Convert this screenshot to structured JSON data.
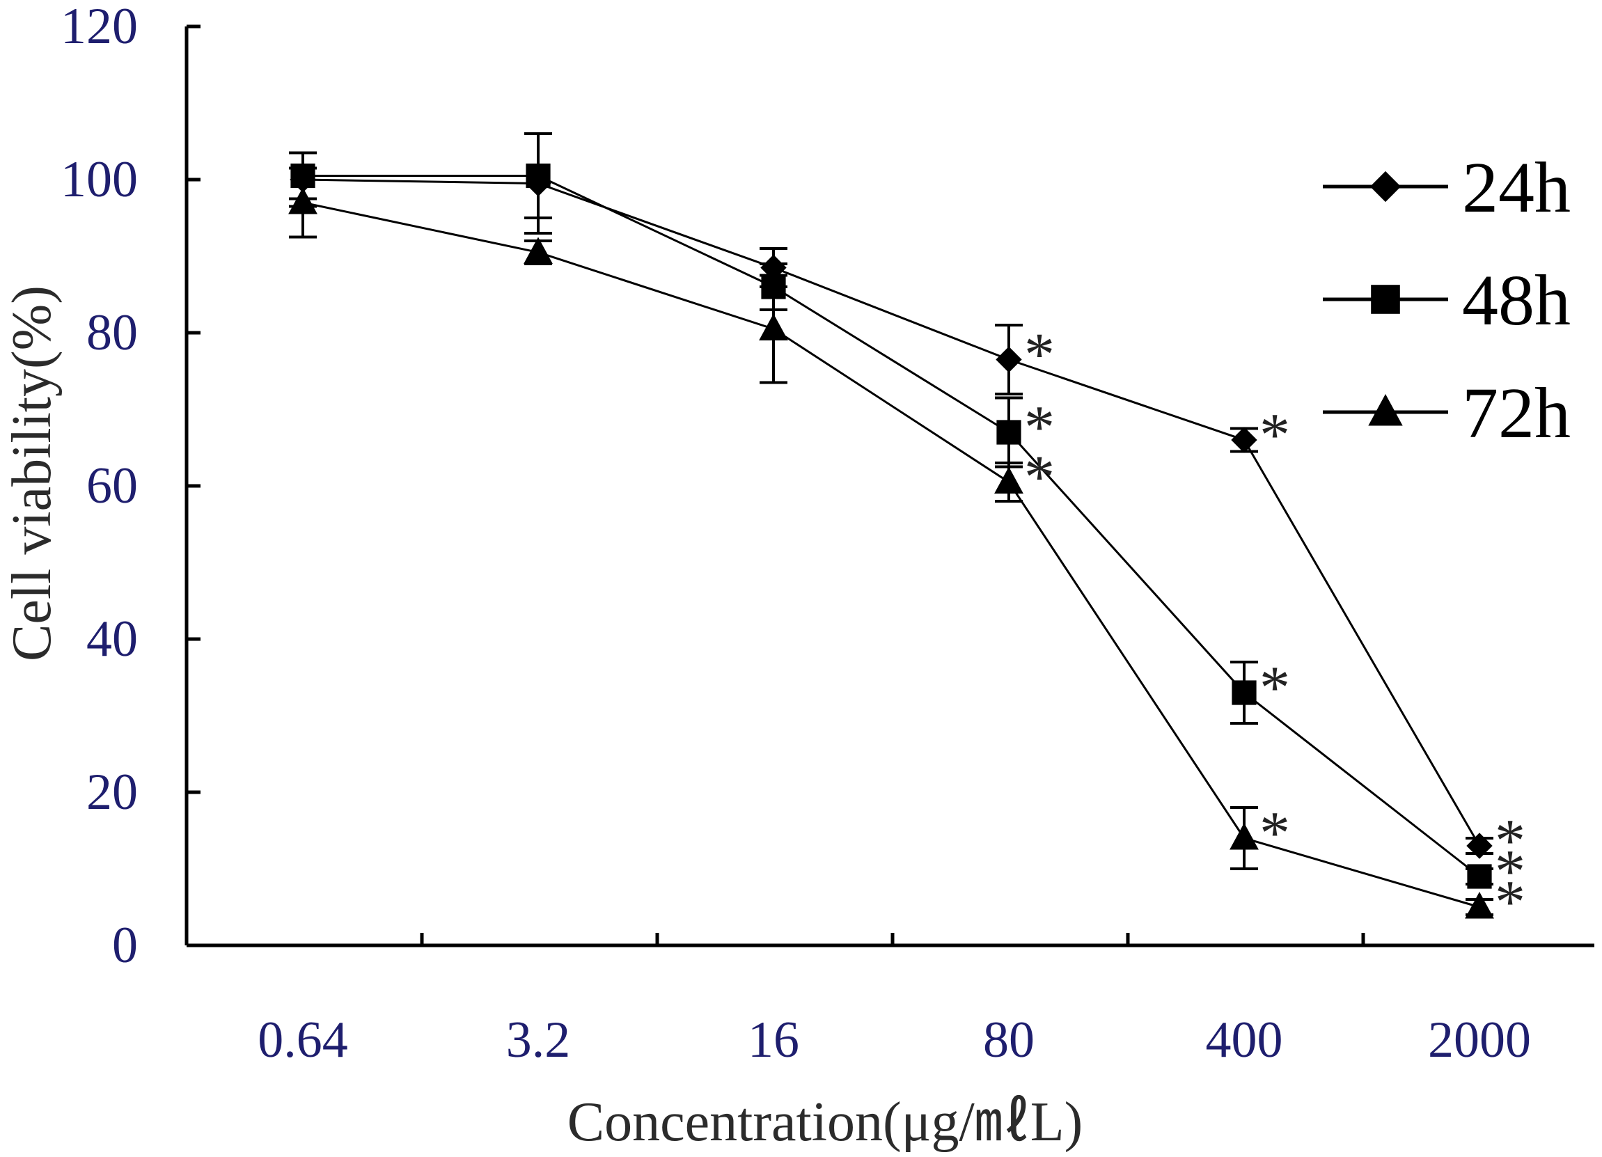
{
  "chart_data": {
    "type": "line",
    "title": "",
    "xlabel": "Concentration(μg/㎖L)",
    "ylabel": "Cell viability(%)",
    "categories": [
      "0.64",
      "3.2",
      "16",
      "80",
      "400",
      "2000"
    ],
    "ylim": [
      0,
      120
    ],
    "yticks": [
      0,
      20,
      40,
      60,
      80,
      100,
      120
    ],
    "legend_position": "top-right",
    "significance_marker": "*",
    "series": [
      {
        "name": "24h",
        "marker": "diamond",
        "values": [
          100,
          99.5,
          88.5,
          76.5,
          66,
          13
        ],
        "errors": [
          3.5,
          6.5,
          2.5,
          4.5,
          1.5,
          1
        ],
        "significant": [
          false,
          false,
          false,
          true,
          true,
          true
        ]
      },
      {
        "name": "48h",
        "marker": "square",
        "values": [
          100.5,
          100.5,
          86,
          67,
          33,
          9
        ],
        "errors": [
          3,
          5.5,
          3,
          4.5,
          4,
          1
        ],
        "significant": [
          false,
          false,
          false,
          true,
          true,
          true
        ]
      },
      {
        "name": "72h",
        "marker": "triangle",
        "values": [
          97,
          90.5,
          80.5,
          60.5,
          14,
          5
        ],
        "errors": [
          4.5,
          1.5,
          7,
          2.5,
          4,
          1
        ],
        "significant": [
          false,
          false,
          false,
          true,
          true,
          true
        ]
      }
    ]
  }
}
